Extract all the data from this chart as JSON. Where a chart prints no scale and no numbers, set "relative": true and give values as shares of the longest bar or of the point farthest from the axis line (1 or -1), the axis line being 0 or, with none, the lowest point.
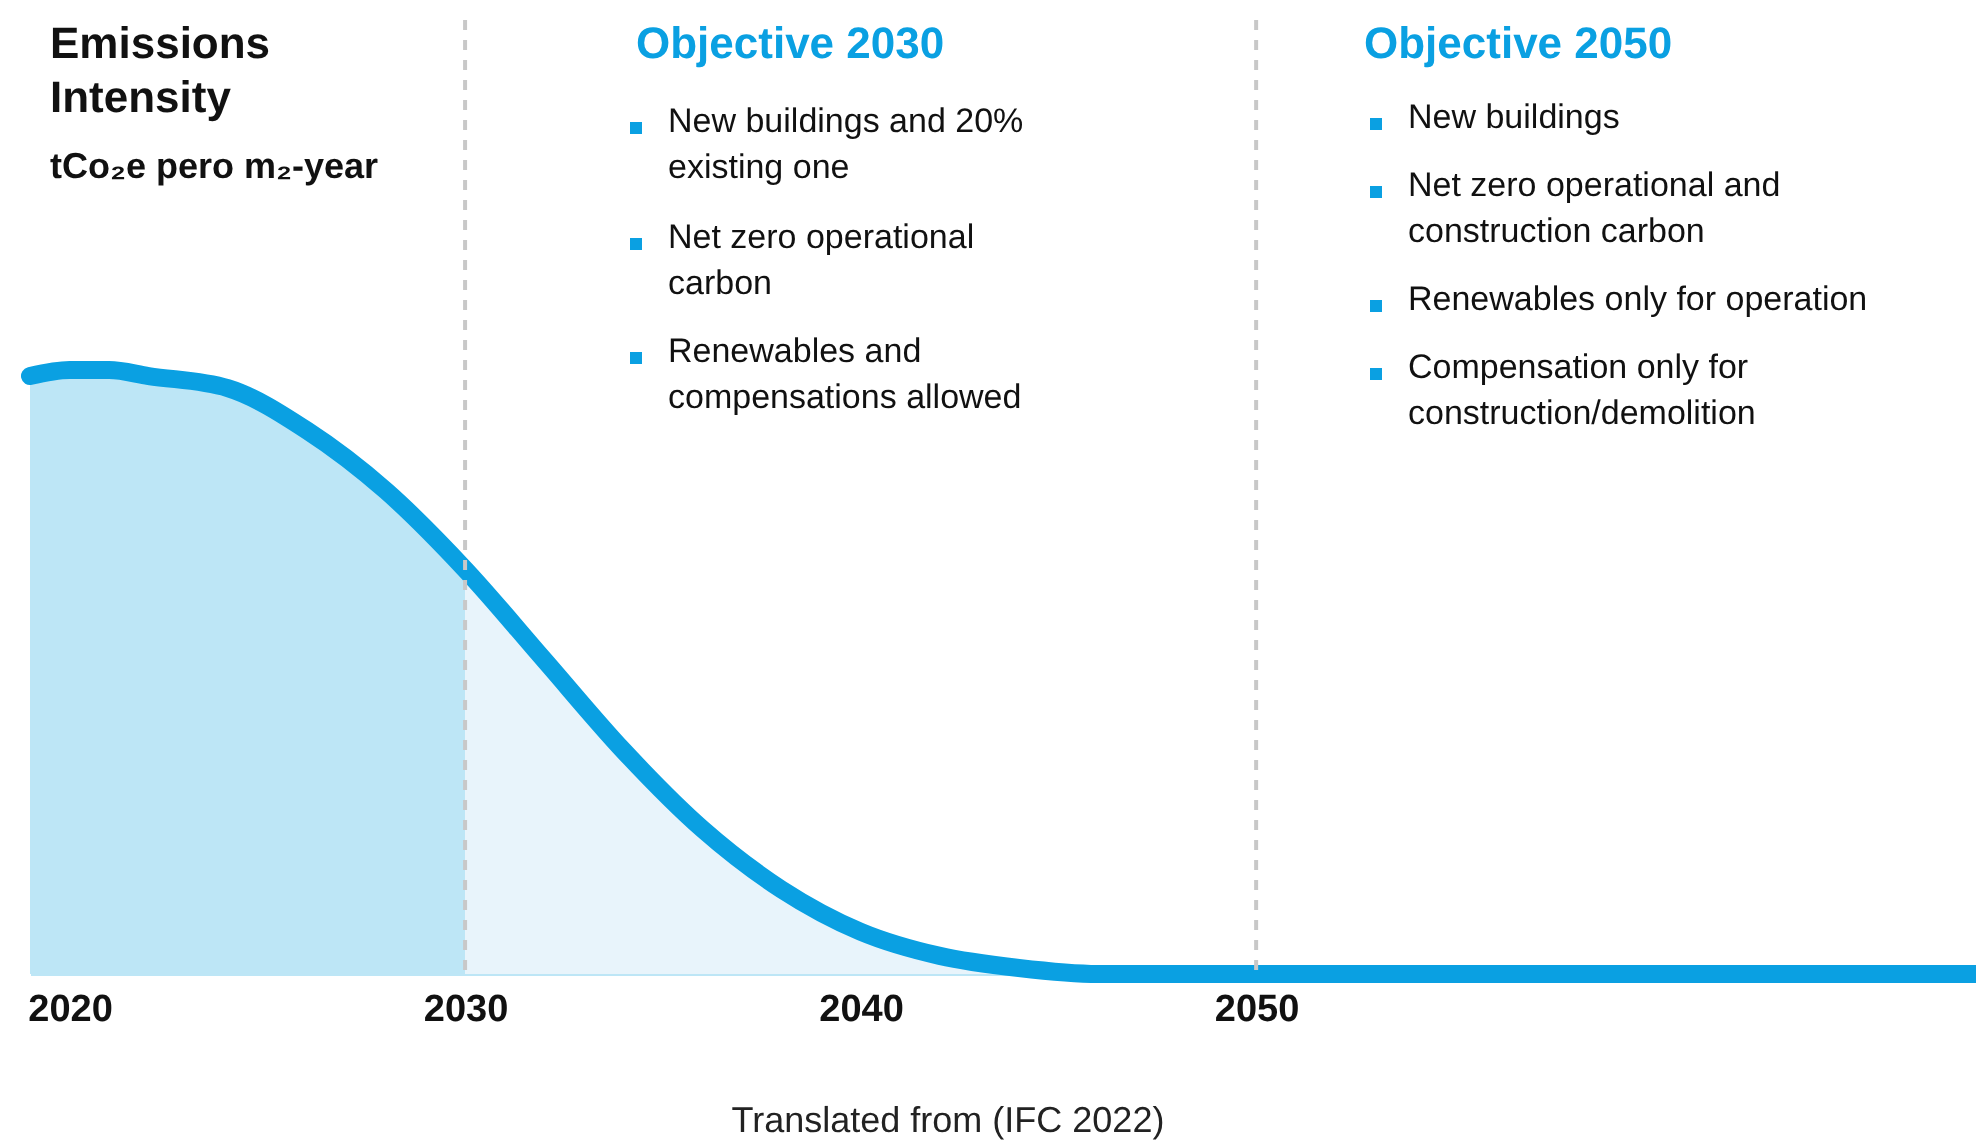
{
  "chart_data": {
    "type": "area",
    "title": "Emissions Intensity",
    "relative": true,
    "xlim": [
      2019,
      2068.2
    ],
    "xticks": [
      2020,
      2030,
      2040,
      2050
    ],
    "series": [
      {
        "color": "#bde6f6",
        "x": [
          2019,
          2020,
          2021,
          2022,
          2024,
          2026,
          2028,
          2030
        ],
        "values": [
          0.99,
          1.0,
          1.0,
          0.99,
          0.97,
          0.9,
          0.8,
          0.67
        ]
      },
      {
        "color": "#e8f4fb",
        "x": [
          2030,
          2032,
          2034,
          2036,
          2038,
          2040,
          2042,
          2044,
          2046,
          2050
        ],
        "values": [
          0.67,
          0.52,
          0.37,
          0.24,
          0.14,
          0.07,
          0.03,
          0.01,
          0,
          0
        ]
      },
      {
        "type": "line",
        "color": "#0aa0e2",
        "x": [
          2019,
          2020,
          2021,
          2022,
          2024,
          2026,
          2028,
          2030,
          2032,
          2034,
          2036,
          2038,
          2040,
          2042,
          2044,
          2046,
          2050,
          2068.2
        ],
        "values": [
          0.99,
          1.0,
          1.0,
          0.99,
          0.97,
          0.9,
          0.8,
          0.67,
          0.52,
          0.37,
          0.24,
          0.14,
          0.07,
          0.03,
          0.01,
          0,
          0,
          0
        ]
      }
    ],
    "ref_lines": [
      {
        "axis": "x",
        "value": 2030,
        "color": "#c8c8c8",
        "line_style": "dashed"
      },
      {
        "axis": "x",
        "value": 2050,
        "color": "#c8c8c8",
        "line_style": "dashed"
      }
    ],
    "annotations": [
      "tCo₂e pero m₂-year",
      "Objective 2030",
      "New buildings and 20%\nexisting one",
      "Net zero operational\ncarbon",
      "Renewables and\ncompensations allowed",
      "Objective 2050",
      "New buildings",
      "Net zero operational and\nconstruction carbon",
      "Renewables only for operation",
      "Compensation only for\nconstruction/demolition",
      "Translated from (IFC 2022)"
    ]
  }
}
